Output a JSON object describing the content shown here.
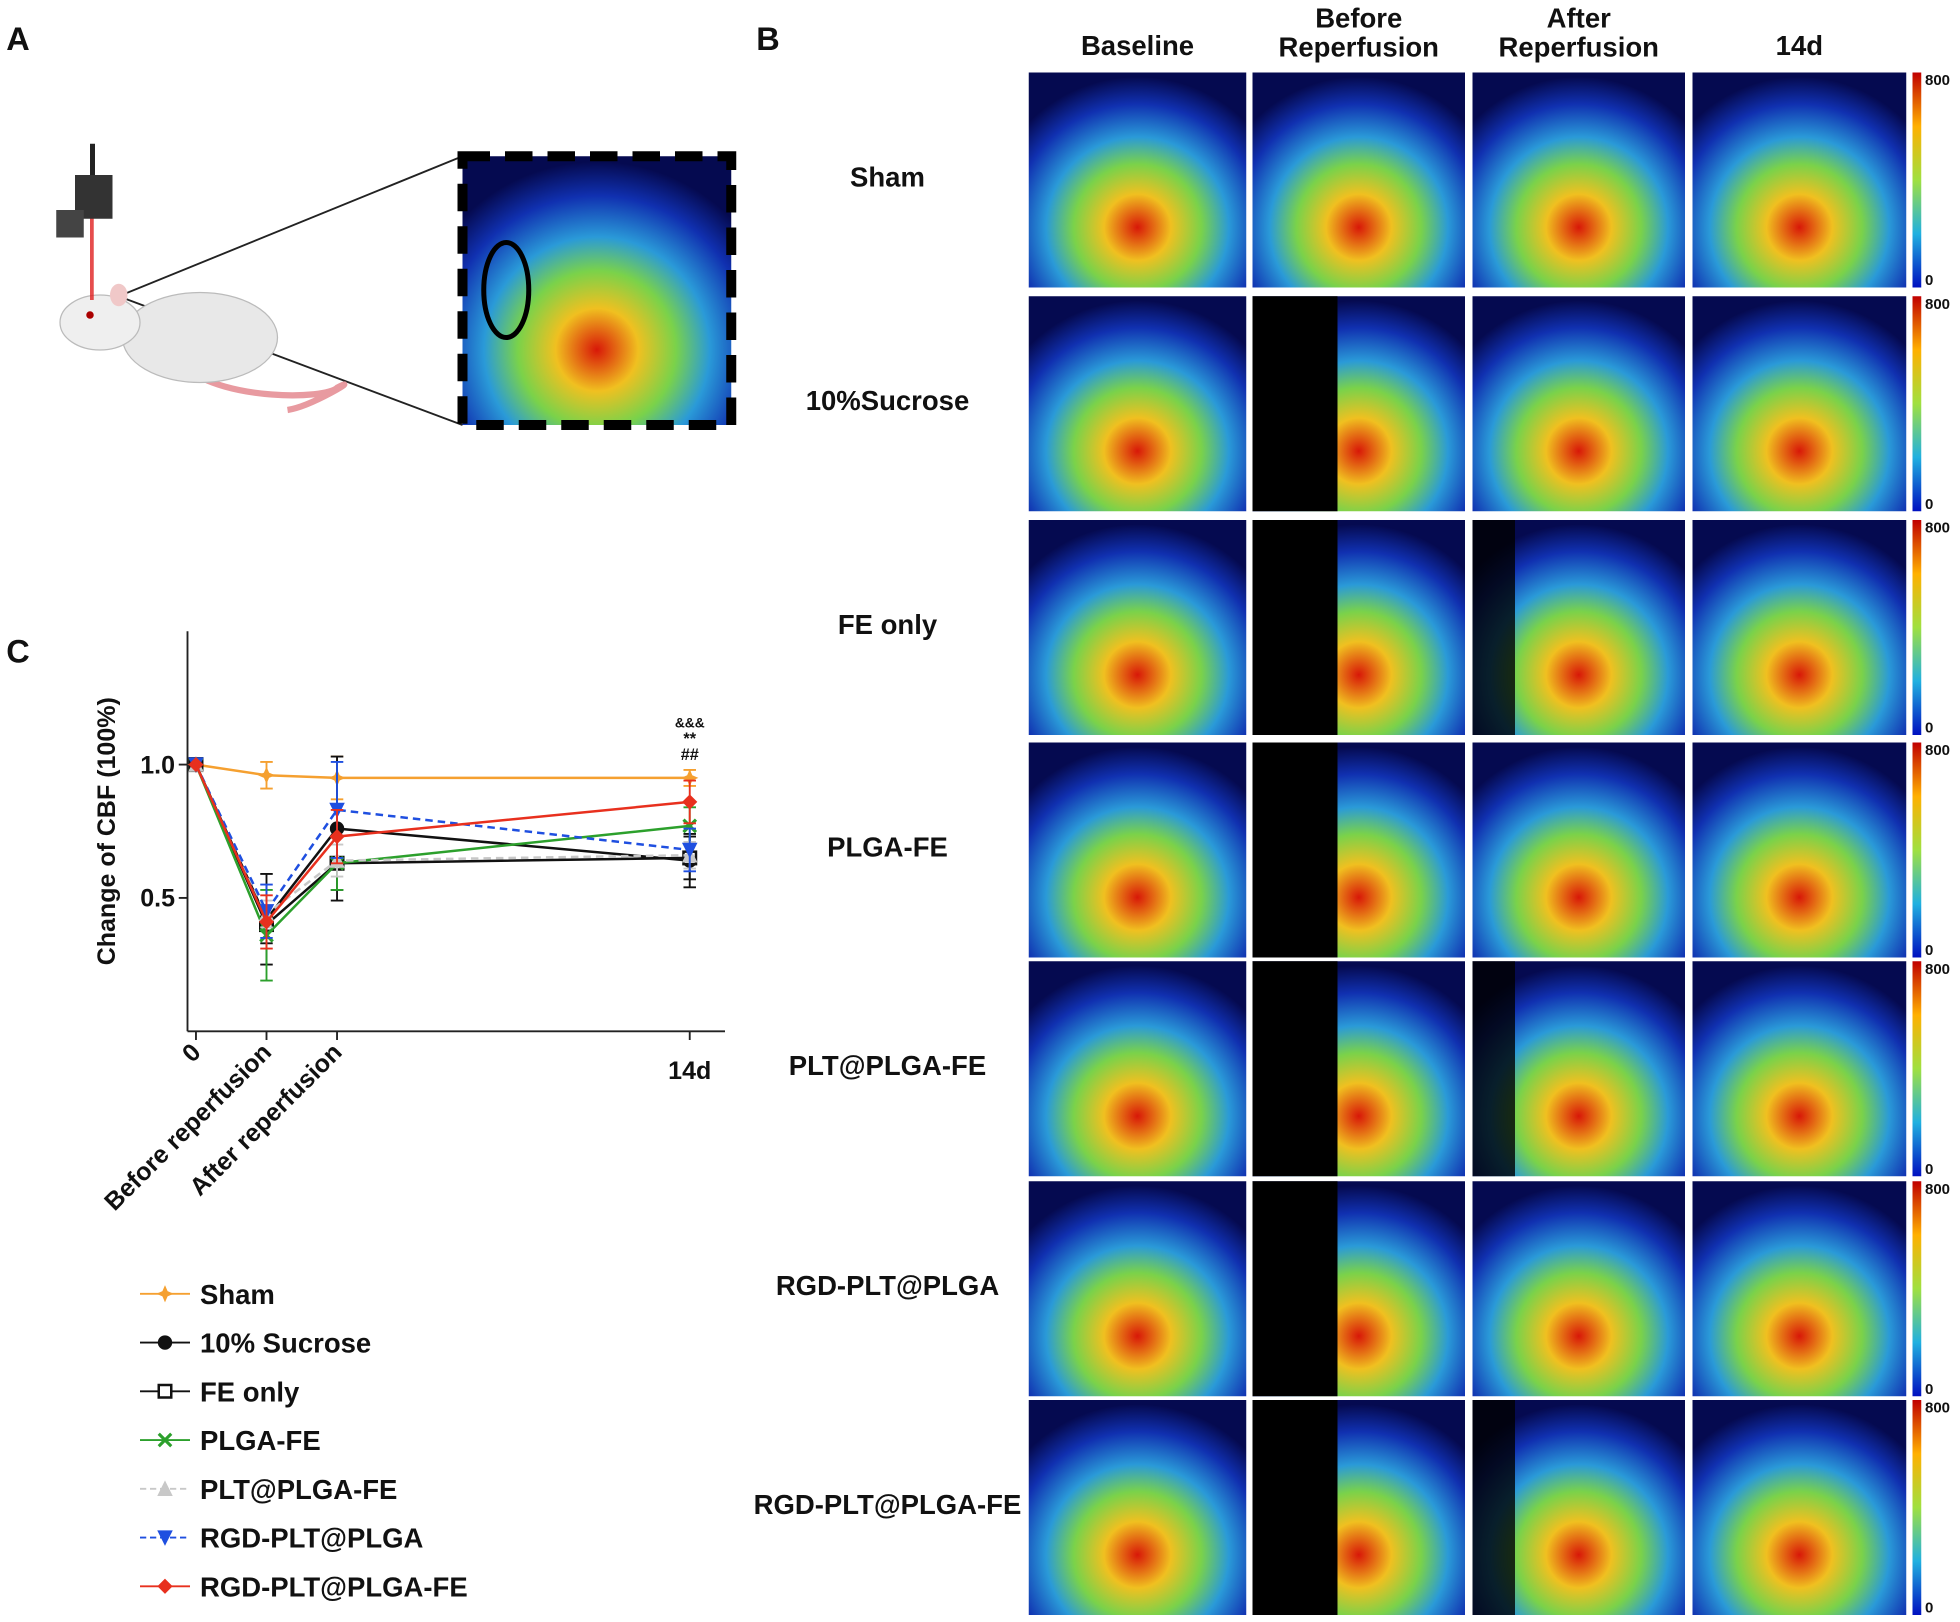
{
  "panel_labels": [
    "A",
    "B",
    "C"
  ],
  "panel_b": {
    "columns": [
      [
        "Baseline"
      ],
      [
        "Before",
        "Reperfusion"
      ],
      [
        "After",
        "Reperfusion"
      ],
      [
        "14d"
      ]
    ],
    "rows": [
      "Sham",
      "10%Sucrose",
      "FE only",
      "PLGA-FE",
      "PLT@PLGA-FE",
      "RGD-PLT@PLGA",
      "RGD-PLT@PLGA-FE"
    ],
    "colorbar": {
      "max": 800,
      "min": 0
    }
  },
  "chart_data": {
    "type": "line",
    "y_label": "Change of CBF (100%)",
    "x": [
      0,
      1,
      2,
      7
    ],
    "xlim": [
      -0.12,
      7.5
    ],
    "xticks": [
      0,
      {
        "value": 1,
        "label": "Before reperfusion"
      },
      {
        "value": 2,
        "label": "After reperfusion"
      },
      {
        "value": 7,
        "label": "14d"
      }
    ],
    "ylim": [
      0,
      1.5
    ],
    "yticks": [
      {
        "value": 0.5,
        "label": "0.5"
      },
      {
        "value": 1,
        "label": "1.0"
      }
    ],
    "annotations": [
      "&&&",
      "**",
      "##"
    ],
    "series": [
      {
        "name": "Sham",
        "color": "#f5a030",
        "marker": "star",
        "dashed": false,
        "values": [
          1.0,
          0.96,
          0.95,
          0.95
        ],
        "errors": [
          0,
          0.05,
          0.08,
          0.03
        ]
      },
      {
        "name": "10% Sucrose",
        "color": "#111111",
        "marker": "circle",
        "dashed": false,
        "values": [
          1.0,
          0.42,
          0.76,
          0.64
        ],
        "errors": [
          0,
          0.17,
          0.27,
          0.1
        ]
      },
      {
        "name": "FE only",
        "color": "#111111",
        "marker": "open-square",
        "dashed": false,
        "values": [
          1.0,
          0.4,
          0.63,
          0.65
        ],
        "errors": [
          0,
          0.07,
          0.1,
          0.08
        ]
      },
      {
        "name": "PLGA-FE",
        "color": "#2ca02c",
        "marker": "cross",
        "dashed": false,
        "values": [
          1.0,
          0.36,
          0.63,
          0.77
        ],
        "errors": [
          0,
          0.17,
          0.1,
          0.07
        ]
      },
      {
        "name": "PLT@PLGA-FE",
        "color": "#c8c8c8",
        "marker": "triangle",
        "dashed": true,
        "values": [
          1.0,
          0.44,
          0.64,
          0.66
        ],
        "errors": [
          0,
          0.05,
          0.06,
          0.05
        ]
      },
      {
        "name": "RGD-PLT@PLGA",
        "color": "#1f4fe0",
        "marker": "down-triangle",
        "dashed": true,
        "values": [
          1.0,
          0.45,
          0.83,
          0.68
        ],
        "errors": [
          0,
          0.1,
          0.18,
          0.08
        ]
      },
      {
        "name": "RGD-PLT@PLGA-FE",
        "color": "#e8301e",
        "marker": "diamond",
        "dashed": false,
        "values": [
          1.0,
          0.41,
          0.73,
          0.86
        ],
        "errors": [
          0,
          0.1,
          0.1,
          0.08
        ]
      }
    ]
  }
}
